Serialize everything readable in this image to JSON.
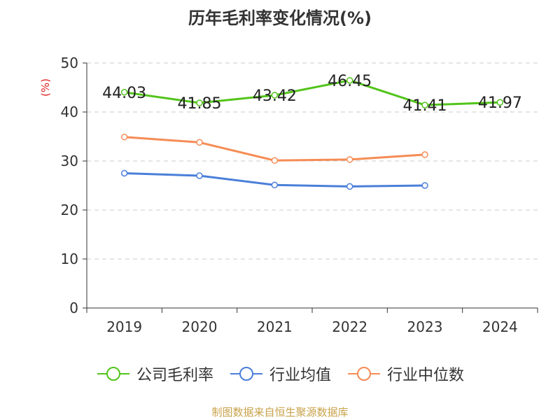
{
  "chart_data": {
    "type": "line",
    "title": "历年毛利率变化情况(%)",
    "ylabel": "(%)",
    "xlabel": "",
    "categories": [
      "2019",
      "2020",
      "2021",
      "2022",
      "2023",
      "2024"
    ],
    "ylim": [
      0,
      50
    ],
    "yticks": [
      0,
      10,
      20,
      30,
      40,
      50
    ],
    "grid": true,
    "legend_position": "bottom",
    "series": [
      {
        "name": "公司毛利率",
        "color": "#52c41a",
        "values": [
          44.03,
          41.85,
          43.42,
          46.45,
          41.41,
          41.97
        ],
        "labels": [
          "44.03",
          "41.85",
          "43.42",
          "46.45",
          "41.41",
          "41.97"
        ]
      },
      {
        "name": "行业均值",
        "color": "#4a7fd9",
        "values": [
          27.5,
          27.0,
          25.1,
          24.8,
          25.0,
          null
        ]
      },
      {
        "name": "行业中位数",
        "color": "#f58c55",
        "values": [
          34.9,
          33.8,
          30.1,
          30.3,
          31.3,
          null
        ]
      }
    ]
  },
  "source_note": "制图数据来自恒生聚源数据库"
}
